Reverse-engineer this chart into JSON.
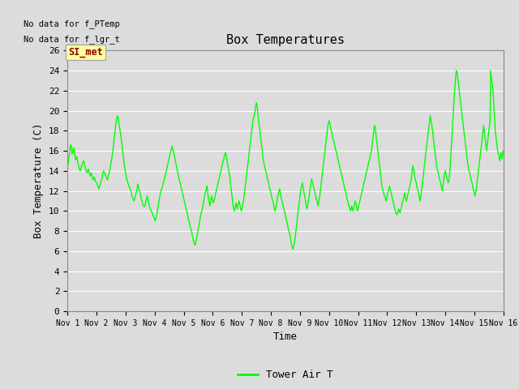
{
  "title": "Box Temperatures",
  "xlabel": "Time",
  "ylabel": "Box Temperature (C)",
  "no_data_text_1": "No data for f_PTemp",
  "no_data_text_2": "No data for f_lgr_t",
  "si_met_label": "SI_met",
  "legend_label": "Tower Air T",
  "line_color": "#00FF00",
  "bg_color": "#DCDCDC",
  "grid_color": "#FFFFFF",
  "ylim": [
    0,
    26
  ],
  "yticks": [
    0,
    2,
    4,
    6,
    8,
    10,
    12,
    14,
    16,
    18,
    20,
    22,
    24,
    26
  ],
  "x_tick_positions": [
    1,
    2,
    3,
    4,
    5,
    6,
    7,
    8,
    9,
    10,
    11,
    12,
    13,
    14,
    15,
    16
  ],
  "x_tick_labels": [
    "Nov 1",
    "Nov 2",
    "Nov 3",
    "Nov 4",
    "Nov 5",
    "Nov 6",
    "Nov 7",
    "Nov 8",
    "Nov 9",
    "Nov 10",
    "Nov 11",
    "Nov 12",
    "Nov 13",
    "Nov 14",
    "Nov 15",
    "Nov 16"
  ],
  "data_x": [
    1.0,
    1.02,
    1.04,
    1.06,
    1.08,
    1.1,
    1.12,
    1.14,
    1.16,
    1.18,
    1.2,
    1.22,
    1.24,
    1.26,
    1.28,
    1.3,
    1.32,
    1.34,
    1.36,
    1.38,
    1.4,
    1.42,
    1.44,
    1.46,
    1.48,
    1.5,
    1.52,
    1.54,
    1.56,
    1.58,
    1.6,
    1.62,
    1.64,
    1.66,
    1.68,
    1.7,
    1.72,
    1.74,
    1.76,
    1.78,
    1.8,
    1.82,
    1.84,
    1.86,
    1.88,
    1.9,
    1.92,
    1.94,
    1.96,
    1.98,
    2.0,
    2.02,
    2.04,
    2.06,
    2.08,
    2.1,
    2.12,
    2.14,
    2.16,
    2.18,
    2.2,
    2.22,
    2.24,
    2.26,
    2.28,
    2.3,
    2.32,
    2.34,
    2.36,
    2.38,
    2.4,
    2.42,
    2.44,
    2.46,
    2.48,
    2.5,
    2.52,
    2.54,
    2.56,
    2.58,
    2.6,
    2.62,
    2.64,
    2.66,
    2.68,
    2.7,
    2.72,
    2.74,
    2.76,
    2.78,
    2.8,
    2.82,
    2.84,
    2.86,
    2.88,
    2.9,
    2.92,
    2.94,
    2.96,
    2.98,
    3.0,
    3.02,
    3.04,
    3.06,
    3.08,
    3.1,
    3.12,
    3.14,
    3.16,
    3.18,
    3.2,
    3.22,
    3.24,
    3.26,
    3.28,
    3.3,
    3.32,
    3.34,
    3.36,
    3.38,
    3.4,
    3.42,
    3.44,
    3.46,
    3.48,
    3.5,
    3.52,
    3.54,
    3.56,
    3.58,
    3.6,
    3.62,
    3.64,
    3.66,
    3.68,
    3.7,
    3.72,
    3.74,
    3.76,
    3.78,
    3.8,
    3.82,
    3.84,
    3.86,
    3.88,
    3.9,
    3.92,
    3.94,
    3.96,
    3.98,
    4.0,
    4.02,
    4.04,
    4.06,
    4.08,
    4.1,
    4.12,
    4.14,
    4.16,
    4.18,
    4.2,
    4.22,
    4.24,
    4.26,
    4.28,
    4.3,
    4.32,
    4.34,
    4.36,
    4.38,
    4.4,
    4.42,
    4.44,
    4.46,
    4.48,
    4.5,
    4.52,
    4.54,
    4.56,
    4.58,
    4.6,
    4.62,
    4.64,
    4.66,
    4.68,
    4.7,
    4.72,
    4.74,
    4.76,
    4.78,
    4.8,
    4.82,
    4.84,
    4.86,
    4.88,
    4.9,
    4.92,
    4.94,
    4.96,
    4.98,
    5.0,
    5.02,
    5.04,
    5.06,
    5.08,
    5.1,
    5.12,
    5.14,
    5.16,
    5.18,
    5.2,
    5.22,
    5.24,
    5.26,
    5.28,
    5.3,
    5.32,
    5.34,
    5.36,
    5.38,
    5.4,
    5.42,
    5.44,
    5.46,
    5.48,
    5.5,
    5.52,
    5.54,
    5.56,
    5.58,
    5.6,
    5.62,
    5.64,
    5.66,
    5.68,
    5.7,
    5.72,
    5.74,
    5.76,
    5.78,
    5.8,
    5.82,
    5.84,
    5.86,
    5.88,
    5.9,
    5.92,
    5.94,
    5.96,
    5.98,
    6.0,
    6.02,
    6.04,
    6.06,
    6.08,
    6.1,
    6.12,
    6.14,
    6.16,
    6.18,
    6.2,
    6.22,
    6.24,
    6.26,
    6.28,
    6.3,
    6.32,
    6.34,
    6.36,
    6.38,
    6.4,
    6.42,
    6.44,
    6.46,
    6.48,
    6.5,
    6.52,
    6.54,
    6.56,
    6.58,
    6.6,
    6.62,
    6.64,
    6.66,
    6.68,
    6.7,
    6.72,
    6.74,
    6.76,
    6.78,
    6.8,
    6.82,
    6.84,
    6.86,
    6.88,
    6.9,
    6.92,
    6.94,
    6.96,
    6.98,
    7.0,
    7.02,
    7.04,
    7.06,
    7.08,
    7.1,
    7.12,
    7.14,
    7.16,
    7.18,
    7.2,
    7.22,
    7.24,
    7.26,
    7.28,
    7.3,
    7.32,
    7.34,
    7.36,
    7.38,
    7.4,
    7.42,
    7.44,
    7.46,
    7.48,
    7.5,
    7.52,
    7.54,
    7.56,
    7.58,
    7.6,
    7.62,
    7.64,
    7.66,
    7.68,
    7.7,
    7.72,
    7.74,
    7.76,
    7.78,
    7.8,
    7.82,
    7.84,
    7.86,
    7.88,
    7.9,
    7.92,
    7.94,
    7.96,
    7.98,
    8.0,
    8.02,
    8.04,
    8.06,
    8.08,
    8.1,
    8.12,
    8.14,
    8.16,
    8.18,
    8.2,
    8.22,
    8.24,
    8.26,
    8.28,
    8.3,
    8.32,
    8.34,
    8.36,
    8.38,
    8.4,
    8.42,
    8.44,
    8.46,
    8.48,
    8.5,
    8.52,
    8.54,
    8.56,
    8.58,
    8.6,
    8.62,
    8.64,
    8.66,
    8.68,
    8.7,
    8.72,
    8.74,
    8.76,
    8.78,
    8.8,
    8.82,
    8.84,
    8.86,
    8.88,
    8.9,
    8.92,
    8.94,
    8.96,
    8.98,
    9.0,
    9.02,
    9.04,
    9.06,
    9.08,
    9.1,
    9.12,
    9.14,
    9.16,
    9.18,
    9.2,
    9.22,
    9.24,
    9.26,
    9.28,
    9.3,
    9.32,
    9.34,
    9.36,
    9.38,
    9.4,
    9.42,
    9.44,
    9.46,
    9.48,
    9.5,
    9.52,
    9.54,
    9.56,
    9.58,
    9.6,
    9.62,
    9.64,
    9.66,
    9.68,
    9.7,
    9.72,
    9.74,
    9.76,
    9.78,
    9.8,
    9.82,
    9.84,
    9.86,
    9.88,
    9.9,
    9.92,
    9.94,
    9.96,
    9.98,
    10.0,
    10.02,
    10.04,
    10.06,
    10.08,
    10.1,
    10.12,
    10.14,
    10.16,
    10.18,
    10.2,
    10.22,
    10.24,
    10.26,
    10.28,
    10.3,
    10.32,
    10.34,
    10.36,
    10.38,
    10.4,
    10.42,
    10.44,
    10.46,
    10.48,
    10.5,
    10.52,
    10.54,
    10.56,
    10.58,
    10.6,
    10.62,
    10.64,
    10.66,
    10.68,
    10.7,
    10.72,
    10.74,
    10.76,
    10.78,
    10.8,
    10.82,
    10.84,
    10.86,
    10.88,
    10.9,
    10.92,
    10.94,
    10.96,
    10.98,
    11.0,
    11.02,
    11.04,
    11.06,
    11.08,
    11.1,
    11.12,
    11.14,
    11.16,
    11.18,
    11.2,
    11.22,
    11.24,
    11.26,
    11.28,
    11.3,
    11.32,
    11.34,
    11.36,
    11.38,
    11.4,
    11.42,
    11.44,
    11.46,
    11.48,
    11.5,
    11.52,
    11.54,
    11.56,
    11.58,
    11.6,
    11.62,
    11.64,
    11.66,
    11.68,
    11.7,
    11.72,
    11.74,
    11.76,
    11.78,
    11.8,
    11.82,
    11.84,
    11.86,
    11.88,
    11.9,
    11.92,
    11.94,
    11.96,
    11.98,
    12.0,
    12.02,
    12.04,
    12.06,
    12.08,
    12.1,
    12.12,
    12.14,
    12.16,
    12.18,
    12.2,
    12.22,
    12.24,
    12.26,
    12.28,
    12.3,
    12.32,
    12.34,
    12.36,
    12.38,
    12.4,
    12.42,
    12.44,
    12.46,
    12.48,
    12.5,
    12.52,
    12.54,
    12.56,
    12.58,
    12.6,
    12.62,
    12.64,
    12.66,
    12.68,
    12.7,
    12.72,
    12.74,
    12.76,
    12.78,
    12.8,
    12.82,
    12.84,
    12.86,
    12.88,
    12.9,
    12.92,
    12.94,
    12.96,
    12.98,
    13.0,
    13.02,
    13.04,
    13.06,
    13.08,
    13.1,
    13.12,
    13.14,
    13.16,
    13.18,
    13.2,
    13.22,
    13.24,
    13.26,
    13.28,
    13.3,
    13.32,
    13.34,
    13.36,
    13.38,
    13.4,
    13.42,
    13.44,
    13.46,
    13.48,
    13.5,
    13.52,
    13.54,
    13.56,
    13.58,
    13.6,
    13.62,
    13.64,
    13.66,
    13.68,
    13.7,
    13.72,
    13.74,
    13.76,
    13.78,
    13.8,
    13.82,
    13.84,
    13.86,
    13.88,
    13.9,
    13.92,
    13.94,
    13.96,
    13.98,
    14.0,
    14.02,
    14.04,
    14.06,
    14.08,
    14.1,
    14.12,
    14.14,
    14.16,
    14.18,
    14.2,
    14.22,
    14.24,
    14.26,
    14.28,
    14.3,
    14.32,
    14.34,
    14.36,
    14.38,
    14.4,
    14.42,
    14.44,
    14.46,
    14.48,
    14.5,
    14.52,
    14.54,
    14.56,
    14.58,
    14.6,
    14.62,
    14.64,
    14.66,
    14.68,
    14.7,
    14.72,
    14.74,
    14.76,
    14.78,
    14.8,
    14.82,
    14.84,
    14.86,
    14.88,
    14.9,
    14.92,
    14.94,
    14.96,
    14.98,
    15.0,
    15.02,
    15.04,
    15.06,
    15.08,
    15.1,
    15.12,
    15.14,
    15.16,
    15.18,
    15.2,
    15.22,
    15.24,
    15.26,
    15.28,
    15.3,
    15.32,
    15.34,
    15.36,
    15.38,
    15.4,
    15.42,
    15.44,
    15.46,
    15.48,
    15.5,
    15.52,
    15.54,
    15.56,
    15.58,
    15.6,
    15.62,
    15.64,
    15.66,
    15.68,
    15.7,
    15.72,
    15.74,
    15.76,
    15.78,
    15.8,
    15.82,
    15.84,
    15.86,
    15.88,
    15.9,
    15.92,
    15.94,
    15.96,
    15.98
  ],
  "data_y": [
    14.5,
    14.7,
    15.0,
    15.5,
    16.0,
    16.5,
    16.6,
    16.2,
    15.7,
    15.8,
    16.2,
    16.3,
    15.9,
    15.5,
    15.1,
    15.2,
    15.4,
    15.1,
    14.8,
    14.5,
    14.3,
    14.1,
    14.0,
    14.2,
    14.5,
    14.6,
    14.8,
    14.9,
    15.0,
    14.8,
    14.5,
    14.2,
    14.0,
    13.9,
    13.8,
    14.0,
    14.2,
    13.9,
    13.7,
    13.5,
    13.6,
    13.8,
    13.5,
    13.3,
    13.1,
    13.2,
    13.4,
    13.2,
    13.0,
    12.9,
    12.8,
    12.7,
    12.5,
    12.3,
    12.2,
    12.4,
    12.6,
    12.8,
    13.0,
    13.2,
    13.5,
    13.8,
    14.0,
    13.9,
    13.8,
    13.6,
    13.5,
    13.3,
    13.2,
    13.1,
    13.4,
    13.7,
    13.9,
    14.2,
    14.5,
    14.8,
    15.2,
    15.6,
    16.0,
    16.5,
    17.0,
    17.5,
    18.0,
    18.5,
    19.0,
    19.3,
    19.5,
    19.3,
    19.0,
    18.6,
    18.2,
    17.8,
    17.4,
    17.0,
    16.5,
    16.0,
    15.5,
    15.0,
    14.5,
    14.2,
    13.8,
    13.5,
    13.2,
    12.9,
    12.8,
    12.6,
    12.5,
    12.3,
    12.2,
    12.0,
    11.8,
    11.5,
    11.3,
    11.2,
    11.0,
    11.1,
    11.3,
    11.5,
    11.8,
    12.0,
    12.3,
    12.7,
    12.5,
    12.2,
    12.0,
    11.8,
    11.5,
    11.2,
    11.0,
    10.8,
    10.6,
    10.5,
    10.4,
    10.5,
    10.7,
    11.0,
    11.2,
    11.5,
    11.3,
    11.0,
    10.8,
    10.5,
    10.3,
    10.1,
    10.0,
    9.9,
    9.8,
    9.6,
    9.5,
    9.3,
    9.2,
    9.0,
    9.2,
    9.5,
    9.8,
    10.1,
    10.5,
    10.8,
    11.2,
    11.5,
    11.8,
    12.0,
    12.2,
    12.4,
    12.6,
    12.8,
    13.0,
    13.3,
    13.5,
    13.8,
    14.0,
    14.2,
    14.5,
    14.8,
    15.0,
    15.3,
    15.6,
    15.8,
    16.0,
    16.2,
    16.5,
    16.2,
    16.0,
    15.8,
    15.5,
    15.2,
    14.9,
    14.6,
    14.3,
    14.0,
    13.8,
    13.5,
    13.2,
    13.0,
    12.8,
    12.5,
    12.2,
    12.0,
    11.8,
    11.5,
    11.2,
    11.0,
    10.8,
    10.5,
    10.2,
    10.0,
    9.8,
    9.5,
    9.2,
    9.0,
    8.8,
    8.5,
    8.2,
    8.0,
    7.8,
    7.5,
    7.2,
    7.0,
    6.8,
    6.6,
    6.7,
    6.9,
    7.2,
    7.5,
    7.8,
    8.2,
    8.5,
    8.8,
    9.2,
    9.5,
    9.8,
    10.0,
    10.2,
    10.5,
    10.8,
    11.2,
    11.5,
    11.8,
    12.0,
    12.2,
    12.5,
    12.0,
    11.5,
    11.0,
    10.8,
    10.5,
    10.8,
    11.2,
    11.5,
    11.2,
    11.0,
    10.8,
    11.0,
    11.2,
    11.5,
    11.8,
    12.0,
    12.2,
    12.5,
    12.8,
    13.0,
    13.2,
    13.5,
    13.8,
    14.0,
    14.3,
    14.5,
    14.8,
    15.0,
    15.2,
    15.5,
    15.7,
    15.8,
    15.5,
    15.2,
    14.8,
    14.5,
    14.2,
    13.8,
    13.5,
    13.0,
    12.5,
    12.0,
    11.5,
    11.0,
    10.5,
    10.2,
    10.0,
    10.2,
    10.5,
    10.8,
    10.5,
    10.2,
    10.5,
    10.8,
    11.0,
    10.8,
    10.5,
    10.2,
    10.0,
    10.2,
    10.5,
    10.8,
    11.0,
    11.5,
    12.0,
    12.5,
    13.0,
    13.5,
    14.0,
    14.5,
    15.0,
    15.5,
    16.0,
    16.5,
    17.0,
    17.5,
    18.0,
    18.5,
    19.0,
    19.3,
    19.5,
    19.8,
    20.0,
    20.5,
    20.8,
    20.5,
    20.0,
    19.5,
    19.0,
    18.5,
    18.0,
    17.5,
    17.0,
    16.5,
    16.0,
    15.5,
    15.0,
    14.8,
    14.5,
    14.2,
    14.0,
    13.8,
    13.5,
    13.2,
    13.0,
    12.8,
    12.5,
    12.2,
    12.0,
    11.8,
    11.5,
    11.2,
    11.0,
    10.8,
    10.5,
    10.2,
    10.0,
    10.2,
    10.5,
    10.8,
    11.2,
    11.5,
    11.8,
    12.0,
    12.2,
    11.8,
    11.5,
    11.2,
    11.0,
    10.8,
    10.5,
    10.2,
    10.0,
    9.8,
    9.5,
    9.2,
    9.0,
    8.8,
    8.5,
    8.2,
    8.0,
    7.8,
    7.5,
    7.2,
    6.8,
    6.5,
    6.3,
    6.2,
    6.4,
    6.7,
    7.0,
    7.5,
    8.0,
    8.5,
    9.0,
    9.5,
    10.0,
    10.5,
    11.0,
    11.5,
    12.0,
    12.3,
    12.5,
    12.8,
    12.5,
    12.2,
    11.8,
    11.5,
    11.2,
    10.8,
    10.5,
    10.2,
    10.5,
    10.8,
    11.2,
    11.5,
    12.0,
    12.5,
    12.8,
    13.2,
    13.0,
    12.8,
    12.5,
    12.2,
    12.0,
    11.8,
    11.5,
    11.2,
    11.0,
    10.8,
    10.5,
    10.8,
    11.2,
    11.5,
    12.0,
    12.5,
    13.0,
    13.5,
    14.0,
    14.5,
    15.0,
    15.5,
    16.0,
    16.5,
    17.0,
    17.5,
    18.0,
    18.5,
    18.8,
    19.0,
    18.8,
    18.5,
    18.2,
    18.0,
    17.8,
    17.5,
    17.2,
    17.0,
    16.8,
    16.5,
    16.2,
    16.0,
    15.8,
    15.5,
    15.2,
    15.0,
    14.8,
    14.5,
    14.2,
    14.0,
    13.8,
    13.5,
    13.2,
    13.0,
    12.8,
    12.5,
    12.2,
    12.0,
    11.8,
    11.5,
    11.2,
    11.0,
    10.8,
    10.5,
    10.5,
    10.2,
    10.0,
    10.2,
    10.5,
    10.2,
    10.0,
    10.2,
    10.5,
    10.8,
    11.0,
    10.8,
    10.5,
    10.2,
    10.0,
    10.2,
    10.5,
    10.8,
    11.0,
    11.2,
    11.5,
    11.8,
    12.0,
    12.2,
    12.5,
    12.8,
    13.0,
    13.2,
    13.5,
    13.8,
    14.0,
    14.2,
    14.5,
    14.8,
    15.0,
    15.2,
    15.5,
    15.8,
    16.0,
    16.5,
    17.0,
    17.5,
    18.0,
    18.5,
    18.5,
    18.0,
    17.5,
    17.0,
    16.5,
    16.0,
    15.5,
    15.0,
    14.5,
    14.0,
    13.5,
    13.0,
    12.5,
    12.2,
    12.0,
    11.8,
    11.5,
    11.5,
    11.2,
    11.0,
    11.2,
    11.5,
    11.8,
    12.0,
    12.2,
    12.5,
    12.2,
    12.0,
    11.8,
    11.5,
    11.2,
    11.0,
    10.8,
    10.5,
    10.2,
    10.0,
    9.8,
    9.7,
    9.6,
    9.8,
    10.0,
    10.2,
    10.0,
    9.8,
    10.0,
    10.2,
    10.5,
    10.8,
    11.0,
    11.2,
    11.5,
    11.8,
    11.5,
    11.2,
    11.0,
    11.2,
    11.5,
    11.8,
    12.0,
    12.2,
    12.5,
    12.8,
    13.0,
    13.5,
    14.0,
    14.5,
    14.2,
    14.0,
    13.5,
    13.2,
    13.0,
    12.8,
    12.5,
    12.2,
    12.0,
    11.8,
    11.5,
    11.2,
    11.0,
    11.5,
    12.0,
    12.5,
    13.0,
    13.5,
    14.0,
    14.5,
    15.0,
    15.5,
    16.0,
    16.5,
    17.0,
    17.5,
    18.0,
    18.5,
    19.0,
    19.5,
    19.2,
    18.8,
    18.5,
    18.0,
    17.5,
    17.0,
    16.5,
    16.0,
    15.5,
    15.0,
    14.5,
    14.2,
    14.0,
    13.8,
    13.5,
    13.2,
    13.0,
    12.8,
    12.5,
    12.2,
    12.0,
    12.5,
    13.0,
    13.5,
    13.8,
    14.0,
    13.8,
    13.5,
    13.2,
    13.0,
    12.8,
    13.0,
    13.5,
    14.0,
    15.0,
    16.0,
    17.0,
    18.0,
    19.0,
    20.0,
    21.0,
    22.0,
    22.8,
    23.5,
    24.0,
    23.8,
    23.5,
    23.0,
    22.5,
    22.0,
    21.5,
    21.0,
    20.5,
    20.0,
    19.5,
    19.0,
    18.5,
    18.0,
    17.5,
    17.0,
    16.5,
    16.0,
    15.5,
    15.0,
    14.5,
    14.2,
    14.0,
    13.8,
    13.5,
    13.2,
    13.0,
    12.8,
    12.5,
    12.2,
    12.0,
    11.8,
    11.5,
    11.8,
    12.0,
    12.5,
    13.0,
    13.5,
    14.0,
    14.5,
    15.0,
    15.5,
    16.0,
    16.5,
    17.0,
    17.5,
    18.0,
    18.5,
    18.0,
    17.5,
    17.0,
    16.5,
    16.0,
    16.5,
    17.0,
    17.5,
    18.0,
    18.5,
    19.0,
    24.0,
    23.5,
    23.0,
    22.5,
    22.0,
    21.0,
    20.0,
    19.0,
    18.0,
    17.5,
    17.0,
    16.5,
    16.0,
    15.8,
    15.5,
    15.2,
    15.0,
    15.5,
    15.8,
    15.5,
    15.2,
    16.0
  ]
}
